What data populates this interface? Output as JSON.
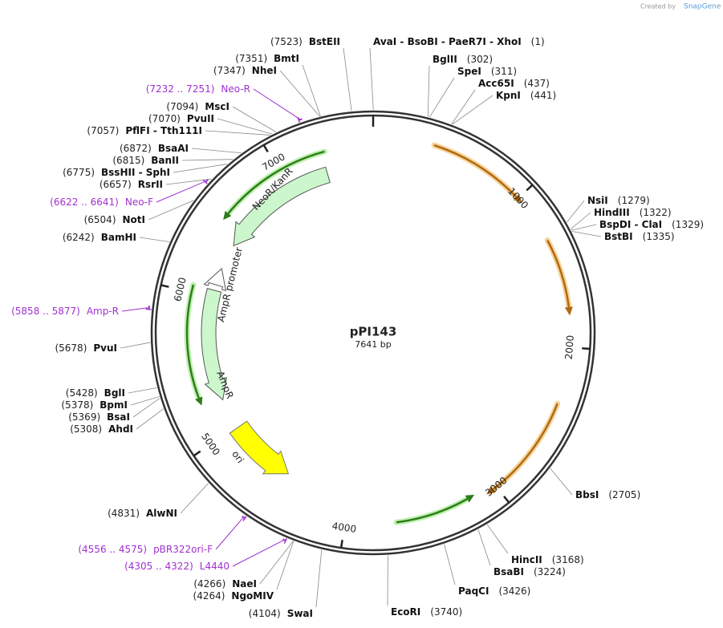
{
  "header": {
    "credit": "Created by",
    "brand": "SnapGene"
  },
  "map": {
    "name": "pPI143",
    "length": "7641 bp",
    "ticks": [
      1000,
      2000,
      3000,
      4000,
      5000,
      6000,
      7000
    ],
    "sites": [
      {
        "name": "BstEII",
        "position": "(7523)"
      },
      {
        "name": "AvaI  -  BsoBI  -  PaeR7I  -  XhoI",
        "position": "(1)"
      },
      {
        "name": "BglII",
        "position": "(302)"
      },
      {
        "name": "SpeI",
        "position": "(311)"
      },
      {
        "name": "Acc65I",
        "position": "(437)"
      },
      {
        "name": "KpnI",
        "position": "(441)"
      },
      {
        "name": "NsiI",
        "position": "(1279)"
      },
      {
        "name": "HindIII",
        "position": "(1322)"
      },
      {
        "name": "BspDI  -  ClaI",
        "position": "(1329)"
      },
      {
        "name": "BstBI",
        "position": "(1335)"
      },
      {
        "name": "BbsI",
        "position": "(2705)"
      },
      {
        "name": "HincII",
        "position": "(3168)"
      },
      {
        "name": "BsaBI",
        "position": "(3224)"
      },
      {
        "name": "PaqCI",
        "position": "(3426)"
      },
      {
        "name": "EcoRI",
        "position": "(3740)"
      },
      {
        "name": "SwaI",
        "position": "(4104)"
      },
      {
        "name": "NgoMIV",
        "position": "(4264)"
      },
      {
        "name": "NaeI",
        "position": "(4266)"
      },
      {
        "name": "AlwNI",
        "position": "(4831)"
      },
      {
        "name": "AhdI",
        "position": "(5308)"
      },
      {
        "name": "BsaI",
        "position": "(5369)"
      },
      {
        "name": "BpmI",
        "position": "(5378)"
      },
      {
        "name": "BglI",
        "position": "(5428)"
      },
      {
        "name": "PvuI",
        "position": "(5678)"
      },
      {
        "name": "BamHI",
        "position": "(6242)"
      },
      {
        "name": "NotI",
        "position": "(6504)"
      },
      {
        "name": "RsrII",
        "position": "(6657)"
      },
      {
        "name": "BssHII  -  SphI",
        "position": "(6775)"
      },
      {
        "name": "BanII",
        "position": "(6815)"
      },
      {
        "name": "BsaAI",
        "position": "(6872)"
      },
      {
        "name": "PflFI  -  Tth111I",
        "position": "(7057)"
      },
      {
        "name": "PvuII",
        "position": "(7070)"
      },
      {
        "name": "MscI",
        "position": "(7094)"
      },
      {
        "name": "NheI",
        "position": "(7347)"
      },
      {
        "name": "BmtI",
        "position": "(7351)"
      }
    ],
    "primers": [
      {
        "name": "Neo-R",
        "position": "(7232 .. 7251)"
      },
      {
        "name": "Neo-F",
        "position": "(6622 .. 6641)"
      },
      {
        "name": "Amp-R",
        "position": "(5858 .. 5877)"
      },
      {
        "name": "pBR322ori-F",
        "position": "(4556 .. 4575)"
      },
      {
        "name": "L4440",
        "position": "(4305 .. 4322)"
      }
    ],
    "features": [
      {
        "name": "NeoR/KanR"
      },
      {
        "name": "AmpR promoter"
      },
      {
        "name": "AmpR"
      },
      {
        "name": "ori"
      }
    ]
  }
}
